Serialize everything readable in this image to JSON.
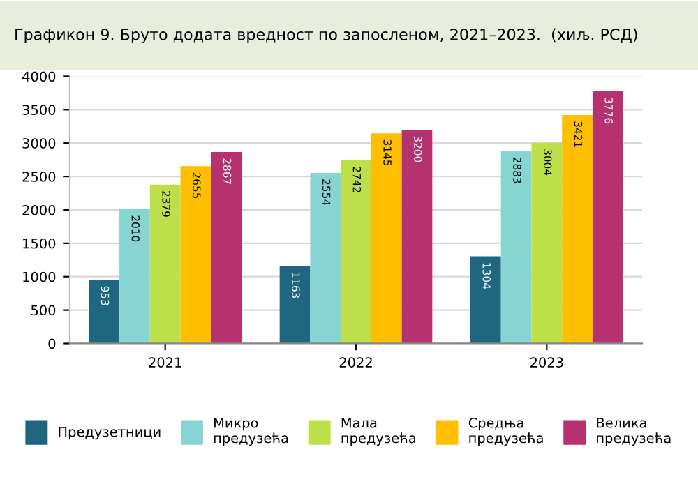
{
  "chart_data": {
    "type": "bar",
    "title": "Графикон 9. Бруто додата вредност по запосленом, 2021–2023.  (хиљ. РСД)",
    "categories": [
      "2021",
      "2022",
      "2023"
    ],
    "series": [
      {
        "name": "Предузетници",
        "color": "#1f6680",
        "values": [
          953,
          1163,
          1304
        ]
      },
      {
        "name": "Микро\nпредузећа",
        "color": "#86d5d3",
        "values": [
          2010,
          2554,
          2883
        ]
      },
      {
        "name": "Мала\nпредузећа",
        "color": "#bde04a",
        "values": [
          2379,
          2742,
          3004
        ]
      },
      {
        "name": "Средња\nпредузећа",
        "color": "#fdbf00",
        "values": [
          2655,
          3145,
          3421
        ]
      },
      {
        "name": "Велика\nпредузећа",
        "color": "#b5316f",
        "values": [
          2867,
          3200,
          3776
        ]
      }
    ],
    "ylim": [
      0,
      4000
    ],
    "yticks": [
      0,
      500,
      1000,
      1500,
      2000,
      2500,
      3000,
      3500,
      4000
    ],
    "grid": "y",
    "legend": "bottom",
    "data_labels": true
  }
}
